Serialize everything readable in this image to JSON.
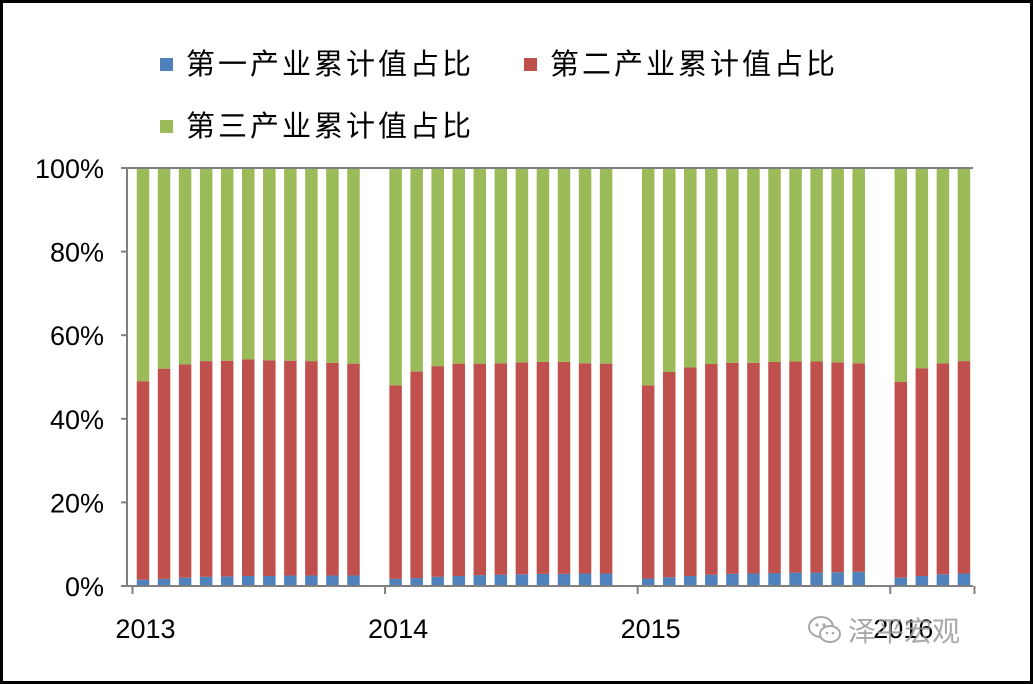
{
  "chart_data": {
    "type": "bar",
    "stacked": true,
    "ylim": [
      0,
      100
    ],
    "yticks": [
      "0%",
      "20%",
      "40%",
      "60%",
      "80%",
      "100%"
    ],
    "x_year_labels": [
      "2013",
      "2014",
      "2015",
      "2016"
    ],
    "groups": [
      {
        "year": "2013",
        "primary": [
          1.5,
          1.7,
          2.0,
          2.2,
          2.3,
          2.4,
          2.4,
          2.5,
          2.5,
          2.5,
          2.5
        ],
        "secondary": [
          47.5,
          50.3,
          51.0,
          51.6,
          51.6,
          51.8,
          51.6,
          51.4,
          51.3,
          50.9,
          50.7
        ]
      },
      {
        "year": "2014",
        "primary": [
          1.7,
          1.9,
          2.2,
          2.4,
          2.6,
          2.7,
          2.8,
          2.9,
          2.9,
          3.0,
          3.0
        ],
        "secondary": [
          46.3,
          49.4,
          50.4,
          50.8,
          50.6,
          50.6,
          50.7,
          50.7,
          50.7,
          50.3,
          50.2
        ]
      },
      {
        "year": "2015",
        "primary": [
          1.8,
          2.1,
          2.4,
          2.7,
          2.9,
          3.0,
          3.1,
          3.2,
          3.2,
          3.3,
          3.4
        ],
        "secondary": [
          46.2,
          49.1,
          49.9,
          50.4,
          50.5,
          50.4,
          50.5,
          50.5,
          50.5,
          50.2,
          49.9
        ]
      },
      {
        "year": "2016",
        "primary": [
          2.0,
          2.4,
          2.8,
          3.0
        ],
        "secondary": [
          46.8,
          49.7,
          50.5,
          50.8
        ]
      }
    ],
    "series": [
      {
        "name": "第一产业累计值占比",
        "color": "#4f81bd"
      },
      {
        "name": "第二产业累计值占比",
        "color": "#c0504d"
      },
      {
        "name": "第三产业累计值占比",
        "color": "#9bbb59"
      }
    ],
    "grid": false,
    "legend_position": "top"
  },
  "watermark": {
    "text": "泽平宏观",
    "icon": "wechat-icon"
  }
}
